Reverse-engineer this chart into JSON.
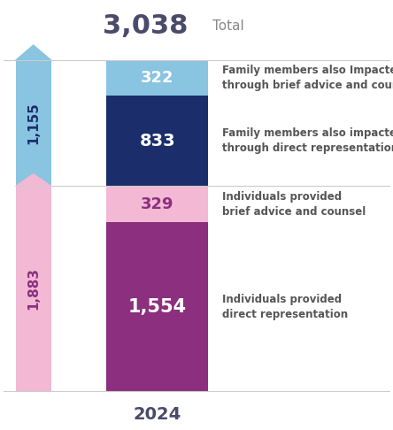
{
  "total": "3,038",
  "total_label": "Total",
  "year": "2024",
  "family_total": "1,155",
  "individuals_total": "1,883",
  "segments": [
    {
      "value": 1554,
      "label_num": "1,554",
      "color": "#8b2f7e",
      "text_line1": "Individuals provided",
      "text_line2": "direct representation",
      "text_color": "#ffffff"
    },
    {
      "value": 329,
      "label_num": "329",
      "color": "#f2b8d4",
      "text_line1": "Individuals provided",
      "text_line2": "brief advice and counsel",
      "text_color": "#8b2f7e"
    },
    {
      "value": 833,
      "label_num": "833",
      "color": "#1b2e6b",
      "text_line1": "Family members also impacted",
      "text_line2": "through direct representation",
      "text_color": "#ffffff"
    },
    {
      "value": 322,
      "label_num": "322",
      "color": "#89c4e1",
      "text_line1": "Family members also Impacted",
      "text_line2": "through brief advice and counsel",
      "text_color": "#ffffff"
    }
  ],
  "background_color": "#ffffff",
  "family_color": "#89c4e1",
  "individuals_color": "#f2b8d4",
  "family_text_color": "#1b2e6b",
  "individuals_text_color": "#8b2f7e",
  "total_color": "#4a4a6a",
  "total_label_color": "#888888",
  "year_color": "#4a4a6a",
  "label_text_color": "#555555",
  "divider_color": "#cccccc"
}
